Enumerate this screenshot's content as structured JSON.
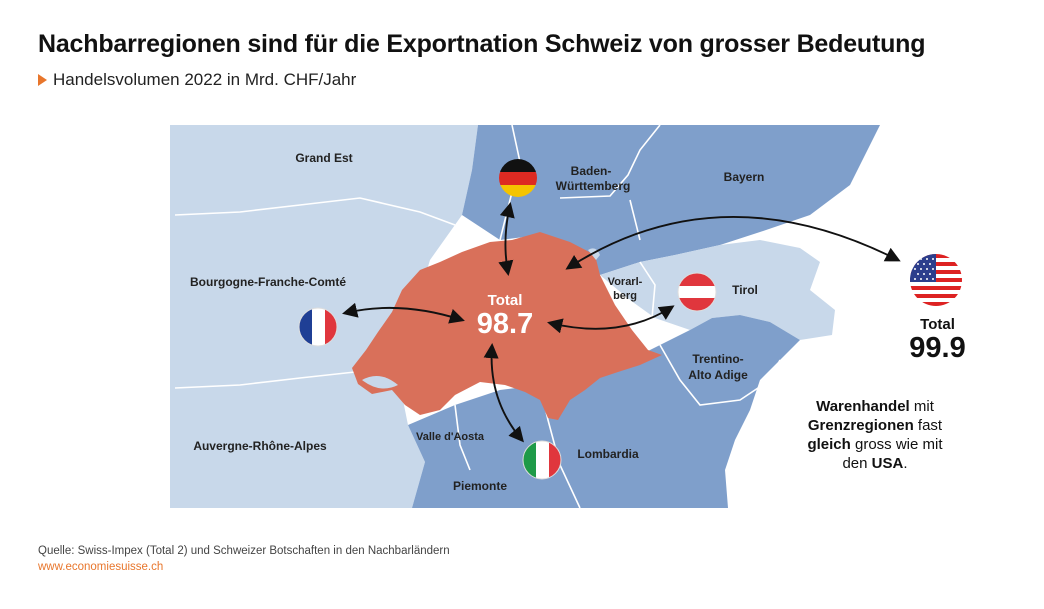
{
  "title": "Nachbarregionen sind für die Exportnation Schweiz von grosser Bedeutung",
  "subtitle": "Handelsvolumen 2022 in Mrd. CHF/Jahr",
  "switzerland": {
    "total_label": "Total",
    "total_value": "98.7",
    "color": "#d9705a"
  },
  "usa": {
    "total_label": "Total",
    "total_value": "99.9"
  },
  "regions": {
    "grand_est": "Grand Est",
    "bourgogne": "Bourgogne-Franche-Comté",
    "auvergne": "Auvergne-Rhône-Alpes",
    "baden_1": "Baden-",
    "baden_2": "Württemberg",
    "bayern": "Bayern",
    "vorarlberg_1": "Vorarl-",
    "vorarlberg_2": "berg",
    "tirol": "Tirol",
    "trentino_1": "Trentino-",
    "trentino_2": "Alto Adige",
    "valle_daosta": "Valle d'Aosta",
    "piemonte": "Piemonte",
    "lombardia": "Lombardia"
  },
  "callout": {
    "l1a": "Warenhandel",
    "l1b": " mit",
    "l2a": "Grenzregionen",
    "l2b": " fast",
    "l3a": "gleich",
    "l3b": " gross wie mit",
    "l4a": "den ",
    "l4b": "USA",
    "l4c": "."
  },
  "source": "Quelle: Swiss-Impex (Total 2) und Schweizer Botschaften in den Nachbarländern",
  "url": "www.economiesuisse.ch",
  "colors": {
    "light_blue": "#c8d8ea",
    "mid_blue": "#7f9fcb",
    "accent": "#e8762c"
  },
  "flags": [
    "france-flag",
    "germany-flag",
    "austria-flag",
    "italy-flag",
    "usa-flag"
  ]
}
